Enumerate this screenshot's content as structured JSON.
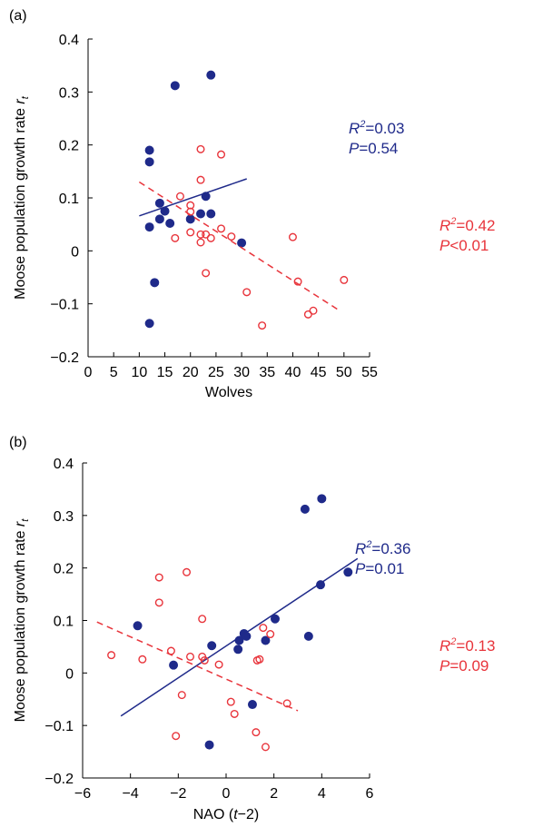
{
  "chart_data": [
    {
      "panel_label": "(a)",
      "type": "scatter",
      "xlabel": "Wolves",
      "ylabel": "Moose population growth rate ",
      "ylabel_sub": "r",
      "ylabel_sub2": "t",
      "xlim": [
        0,
        55
      ],
      "ylim": [
        -0.2,
        0.4
      ],
      "xticks": [
        0,
        5,
        10,
        15,
        20,
        25,
        30,
        35,
        40,
        45,
        50,
        55
      ],
      "yticks": [
        -0.2,
        -0.1,
        0,
        0.1,
        0.2,
        0.3,
        0.4
      ],
      "xtick_labels": [
        "0",
        "5",
        "10",
        "15",
        "20",
        "25",
        "30",
        "35",
        "40",
        "45",
        "50",
        "55"
      ],
      "ytick_labels": [
        "−0.2",
        "−0.1",
        "0",
        "0.1",
        "0.2",
        "0.3",
        "0.4"
      ],
      "grid": false,
      "series": [
        {
          "marker": "filled-circle",
          "color": "#1f2a8a",
          "points": [
            [
              12,
              0.19
            ],
            [
              12,
              0.168
            ],
            [
              12,
              0.045
            ],
            [
              12,
              -0.137
            ],
            [
              13,
              -0.06
            ],
            [
              14,
              0.09
            ],
            [
              14,
              0.06
            ],
            [
              15,
              0.075
            ],
            [
              16,
              0.052
            ],
            [
              17,
              0.312
            ],
            [
              20,
              0.06
            ],
            [
              22,
              0.07
            ],
            [
              23,
              0.103
            ],
            [
              24,
              0.332
            ],
            [
              24,
              0.07
            ],
            [
              30,
              0.015
            ]
          ],
          "fit": {
            "x": [
              10,
              31
            ],
            "y": [
              0.066,
              0.136
            ],
            "style": "solid"
          },
          "annotation": {
            "r2_label": "R",
            "r2_value": "=0.03",
            "p_label": "P",
            "p_value": "=0.54"
          }
        },
        {
          "marker": "open-circle",
          "color": "#e8343b",
          "points": [
            [
              17,
              0.024
            ],
            [
              18,
              0.103
            ],
            [
              20,
              0.086
            ],
            [
              20,
              0.074
            ],
            [
              20,
              0.035
            ],
            [
              22,
              0.192
            ],
            [
              22,
              0.134
            ],
            [
              22,
              0.031
            ],
            [
              22,
              0.016
            ],
            [
              23,
              0.031
            ],
            [
              23,
              -0.042
            ],
            [
              24,
              0.024
            ],
            [
              26,
              0.182
            ],
            [
              26,
              0.042
            ],
            [
              28,
              0.027
            ],
            [
              31,
              -0.078
            ],
            [
              34,
              -0.141
            ],
            [
              40,
              0.026
            ],
            [
              41,
              -0.058
            ],
            [
              43,
              -0.12
            ],
            [
              44,
              -0.113
            ],
            [
              50,
              -0.055
            ]
          ],
          "fit": {
            "x": [
              10,
              49
            ],
            "y": [
              0.13,
              -0.112
            ],
            "style": "dashed"
          },
          "annotation": {
            "r2_label": "R",
            "r2_value": "=0.42",
            "p_label": "P",
            "p_value": "<0.01"
          }
        }
      ]
    },
    {
      "panel_label": "(b)",
      "type": "scatter",
      "xlabel": "NAO (",
      "xlabel_italic": "t",
      "xlabel_tail": "−2)",
      "ylabel": "Moose population growth rate ",
      "ylabel_sub": "r",
      "ylabel_sub2": "t",
      "xlim": [
        -6,
        6
      ],
      "ylim": [
        -0.2,
        0.4
      ],
      "xticks": [
        -6,
        -4,
        -2,
        0,
        2,
        4,
        6
      ],
      "yticks": [
        -0.2,
        -0.1,
        0,
        0.1,
        0.2,
        0.3,
        0.4
      ],
      "xtick_labels": [
        "−6",
        "−4",
        "−2",
        "0",
        "2",
        "4",
        "6"
      ],
      "ytick_labels": [
        "−0.2",
        "−0.1",
        "0",
        "0.1",
        "0.2",
        "0.3",
        "0.4"
      ],
      "grid": false,
      "series": [
        {
          "marker": "filled-circle",
          "color": "#1f2a8a",
          "points": [
            [
              -3.7,
              0.09
            ],
            [
              -2.2,
              0.015
            ],
            [
              -0.7,
              -0.137
            ],
            [
              -0.6,
              0.052
            ],
            [
              0.5,
              0.045
            ],
            [
              0.55,
              0.062
            ],
            [
              0.75,
              0.075
            ],
            [
              0.85,
              0.07
            ],
            [
              1.1,
              -0.06
            ],
            [
              1.65,
              0.062
            ],
            [
              2.05,
              0.103
            ],
            [
              3.3,
              0.312
            ],
            [
              3.45,
              0.07
            ],
            [
              3.95,
              0.168
            ],
            [
              4.0,
              0.332
            ],
            [
              5.1,
              0.192
            ]
          ],
          "fit": {
            "x": [
              -4.4,
              5.5
            ],
            "y": [
              -0.082,
              0.218
            ],
            "style": "solid"
          },
          "annotation": {
            "r2_label": "R",
            "r2_value": "=0.36",
            "p_label": "P",
            "p_value": "=0.01"
          }
        },
        {
          "marker": "open-circle",
          "color": "#e8343b",
          "points": [
            [
              -4.8,
              0.034
            ],
            [
              -3.5,
              0.026
            ],
            [
              -2.8,
              0.182
            ],
            [
              -2.8,
              0.134
            ],
            [
              -2.3,
              0.042
            ],
            [
              -2.1,
              -0.12
            ],
            [
              -1.85,
              -0.042
            ],
            [
              -1.65,
              0.192
            ],
            [
              -1.5,
              0.031
            ],
            [
              -1.0,
              0.103
            ],
            [
              -1.0,
              0.031
            ],
            [
              -0.9,
              0.024
            ],
            [
              -0.3,
              0.016
            ],
            [
              0.2,
              -0.055
            ],
            [
              0.35,
              -0.078
            ],
            [
              1.25,
              -0.113
            ],
            [
              1.3,
              0.024
            ],
            [
              1.4,
              0.026
            ],
            [
              1.55,
              0.086
            ],
            [
              1.65,
              -0.141
            ],
            [
              1.85,
              0.074
            ],
            [
              2.55,
              -0.058
            ]
          ],
          "fit": {
            "x": [
              -5.4,
              3.0
            ],
            "y": [
              0.097,
              -0.072
            ],
            "style": "dashed"
          },
          "annotation": {
            "r2_label": "R",
            "r2_value": "=0.13",
            "p_label": "P",
            "p_value": "=0.09"
          }
        }
      ]
    }
  ]
}
